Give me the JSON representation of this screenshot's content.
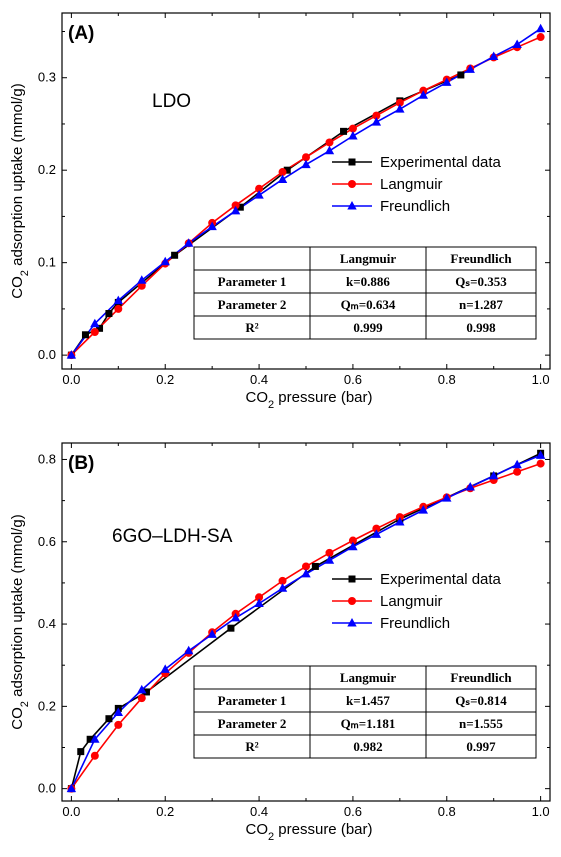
{
  "chart_data": [
    {
      "type": "line",
      "panel_label": "(A)",
      "annotation": "LDO",
      "xlabel": "CO2 pressure (bar)",
      "ylabel": "CO2 adsorption uptake (mmol/g)",
      "xlim": [
        -0.02,
        1.02
      ],
      "ylim": [
        -0.015,
        0.37
      ],
      "xticks": [
        "0.0",
        "0.2",
        "0.4",
        "0.6",
        "0.8",
        "1.0"
      ],
      "yticks": [
        "0.0",
        "0.1",
        "0.2",
        "0.3"
      ],
      "legend_position": "center-right",
      "series": [
        {
          "name": "Experimental data",
          "color": "#000000",
          "marker": "square",
          "x": [
            0.0,
            0.03,
            0.06,
            0.08,
            0.1,
            0.22,
            0.36,
            0.46,
            0.58,
            0.7,
            0.83
          ],
          "y": [
            0.0,
            0.022,
            0.029,
            0.045,
            0.057,
            0.108,
            0.16,
            0.2,
            0.242,
            0.275,
            0.303
          ]
        },
        {
          "name": "Langmuir",
          "color": "#ff0000",
          "marker": "circle",
          "x": [
            0.0,
            0.05,
            0.1,
            0.15,
            0.2,
            0.25,
            0.3,
            0.35,
            0.4,
            0.45,
            0.5,
            0.55,
            0.6,
            0.65,
            0.7,
            0.75,
            0.8,
            0.85,
            0.9,
            0.95,
            1.0
          ],
          "y": [
            0.0,
            0.025,
            0.05,
            0.075,
            0.099,
            0.121,
            0.143,
            0.162,
            0.18,
            0.198,
            0.214,
            0.23,
            0.245,
            0.259,
            0.273,
            0.286,
            0.298,
            0.31,
            0.322,
            0.333,
            0.344
          ]
        },
        {
          "name": "Freundlich",
          "color": "#0000ff",
          "marker": "triangle",
          "x": [
            0.0,
            0.05,
            0.1,
            0.15,
            0.2,
            0.25,
            0.3,
            0.35,
            0.4,
            0.45,
            0.5,
            0.55,
            0.6,
            0.65,
            0.7,
            0.75,
            0.8,
            0.85,
            0.9,
            0.95,
            1.0
          ],
          "y": [
            0.0,
            0.034,
            0.059,
            0.081,
            0.101,
            0.121,
            0.139,
            0.156,
            0.173,
            0.19,
            0.206,
            0.221,
            0.237,
            0.252,
            0.266,
            0.281,
            0.295,
            0.309,
            0.323,
            0.336,
            0.353
          ]
        }
      ],
      "table": {
        "columns": [
          "",
          "Langmuir",
          "Freundlich"
        ],
        "rows": [
          [
            "Parameter 1",
            "k=0.886",
            "Qₛ=0.353"
          ],
          [
            "Parameter 2",
            "Qₘ=0.634",
            "n=1.287"
          ],
          [
            "R²",
            "0.999",
            "0.998"
          ]
        ]
      }
    },
    {
      "type": "line",
      "panel_label": "(B)",
      "annotation": "6GO–LDH-SA",
      "xlabel": "CO2 pressure (bar)",
      "ylabel": "CO2 adsorption uptake (mmol/g)",
      "xlim": [
        -0.02,
        1.02
      ],
      "ylim": [
        -0.03,
        0.84
      ],
      "xticks": [
        "0.0",
        "0.2",
        "0.4",
        "0.6",
        "0.8",
        "1.0"
      ],
      "yticks": [
        "0.0",
        "0.2",
        "0.4",
        "0.6",
        "0.8"
      ],
      "legend_position": "center-right",
      "series": [
        {
          "name": "Experimental data",
          "color": "#000000",
          "marker": "square",
          "x": [
            0.0,
            0.02,
            0.04,
            0.08,
            0.1,
            0.16,
            0.34,
            0.52,
            0.7,
            0.9,
            1.0
          ],
          "y": [
            0.0,
            0.09,
            0.12,
            0.17,
            0.195,
            0.235,
            0.39,
            0.54,
            0.655,
            0.76,
            0.815
          ]
        },
        {
          "name": "Langmuir",
          "color": "#ff0000",
          "marker": "circle",
          "x": [
            0.0,
            0.05,
            0.1,
            0.15,
            0.2,
            0.25,
            0.3,
            0.35,
            0.4,
            0.45,
            0.5,
            0.55,
            0.6,
            0.65,
            0.7,
            0.75,
            0.8,
            0.85,
            0.9,
            0.95,
            1.0
          ],
          "y": [
            0.0,
            0.08,
            0.155,
            0.22,
            0.28,
            0.33,
            0.38,
            0.425,
            0.465,
            0.505,
            0.54,
            0.573,
            0.603,
            0.632,
            0.66,
            0.685,
            0.708,
            0.73,
            0.75,
            0.77,
            0.79
          ]
        },
        {
          "name": "Freundlich",
          "color": "#0000ff",
          "marker": "triangle",
          "x": [
            0.0,
            0.05,
            0.1,
            0.15,
            0.2,
            0.25,
            0.3,
            0.35,
            0.4,
            0.45,
            0.5,
            0.55,
            0.6,
            0.65,
            0.7,
            0.75,
            0.8,
            0.85,
            0.9,
            0.95,
            1.0
          ],
          "y": [
            0.0,
            0.12,
            0.185,
            0.24,
            0.29,
            0.335,
            0.375,
            0.415,
            0.45,
            0.487,
            0.522,
            0.555,
            0.588,
            0.618,
            0.648,
            0.677,
            0.706,
            0.733,
            0.76,
            0.787,
            0.81
          ]
        }
      ],
      "table": {
        "columns": [
          "",
          "Langmuir",
          "Freundlich"
        ],
        "rows": [
          [
            "Parameter 1",
            "k=1.457",
            "Qₛ=0.814"
          ],
          [
            "Parameter 2",
            "Qₘ=1.181",
            "n=1.555"
          ],
          [
            "R²",
            "0.982",
            "0.997"
          ]
        ]
      }
    }
  ]
}
